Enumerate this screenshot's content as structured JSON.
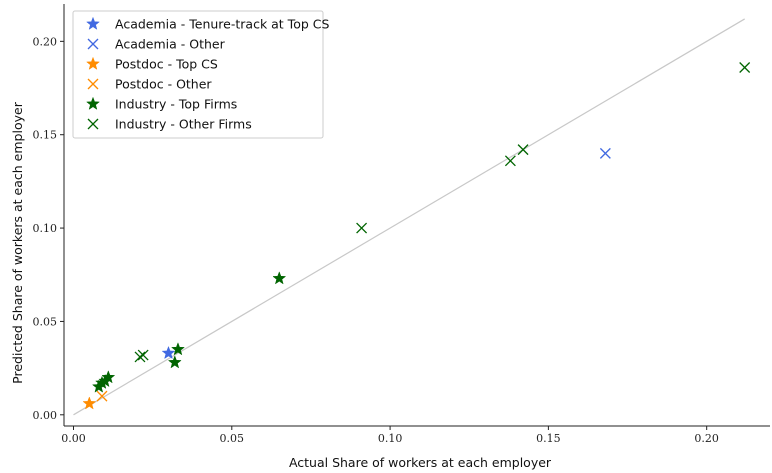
{
  "chart_data": {
    "type": "scatter",
    "title": "",
    "xlabel": "Actual Share of workers at each employer",
    "ylabel": "Predicted Share of workers at each employer",
    "xlim": [
      -0.003,
      0.22
    ],
    "ylim": [
      -0.006,
      0.22
    ],
    "xticks": [
      0.0,
      0.05,
      0.1,
      0.15,
      0.2
    ],
    "xtick_labels": [
      "0.00",
      "0.05",
      "0.10",
      "0.15",
      "0.20"
    ],
    "yticks": [
      0.0,
      0.05,
      0.1,
      0.15,
      0.2
    ],
    "ytick_labels": [
      "0.00",
      "0.05",
      "0.10",
      "0.15",
      "0.20"
    ],
    "grid": false,
    "legend_position": "top-left",
    "reference_line": {
      "x": [
        0.0,
        0.212
      ],
      "y": [
        0.0,
        0.212
      ],
      "color": "#c8c8c8"
    },
    "series": [
      {
        "name": "Academia - Tenure-track at Top CS",
        "marker": "star",
        "color": "#4169e1",
        "points": [
          [
            0.03,
            0.033
          ]
        ]
      },
      {
        "name": "Academia - Other",
        "marker": "x",
        "color": "#4169e1",
        "points": [
          [
            0.168,
            0.14
          ]
        ]
      },
      {
        "name": "Postdoc - Top CS",
        "marker": "star",
        "color": "#ff8c00",
        "points": [
          [
            0.005,
            0.006
          ]
        ]
      },
      {
        "name": "Postdoc - Other",
        "marker": "x",
        "color": "#ff8c00",
        "points": [
          [
            0.009,
            0.01
          ]
        ]
      },
      {
        "name": "Industry - Top Firms",
        "marker": "star",
        "color": "#006400",
        "points": [
          [
            0.065,
            0.073
          ],
          [
            0.032,
            0.028
          ],
          [
            0.033,
            0.035
          ],
          [
            0.011,
            0.02
          ],
          [
            0.009,
            0.017
          ],
          [
            0.01,
            0.018
          ],
          [
            0.008,
            0.015
          ]
        ]
      },
      {
        "name": "Industry - Other Firms",
        "marker": "x",
        "color": "#006400",
        "points": [
          [
            0.212,
            0.186
          ],
          [
            0.142,
            0.142
          ],
          [
            0.138,
            0.136
          ],
          [
            0.091,
            0.1
          ],
          [
            0.022,
            0.032
          ],
          [
            0.021,
            0.031
          ]
        ]
      }
    ]
  }
}
